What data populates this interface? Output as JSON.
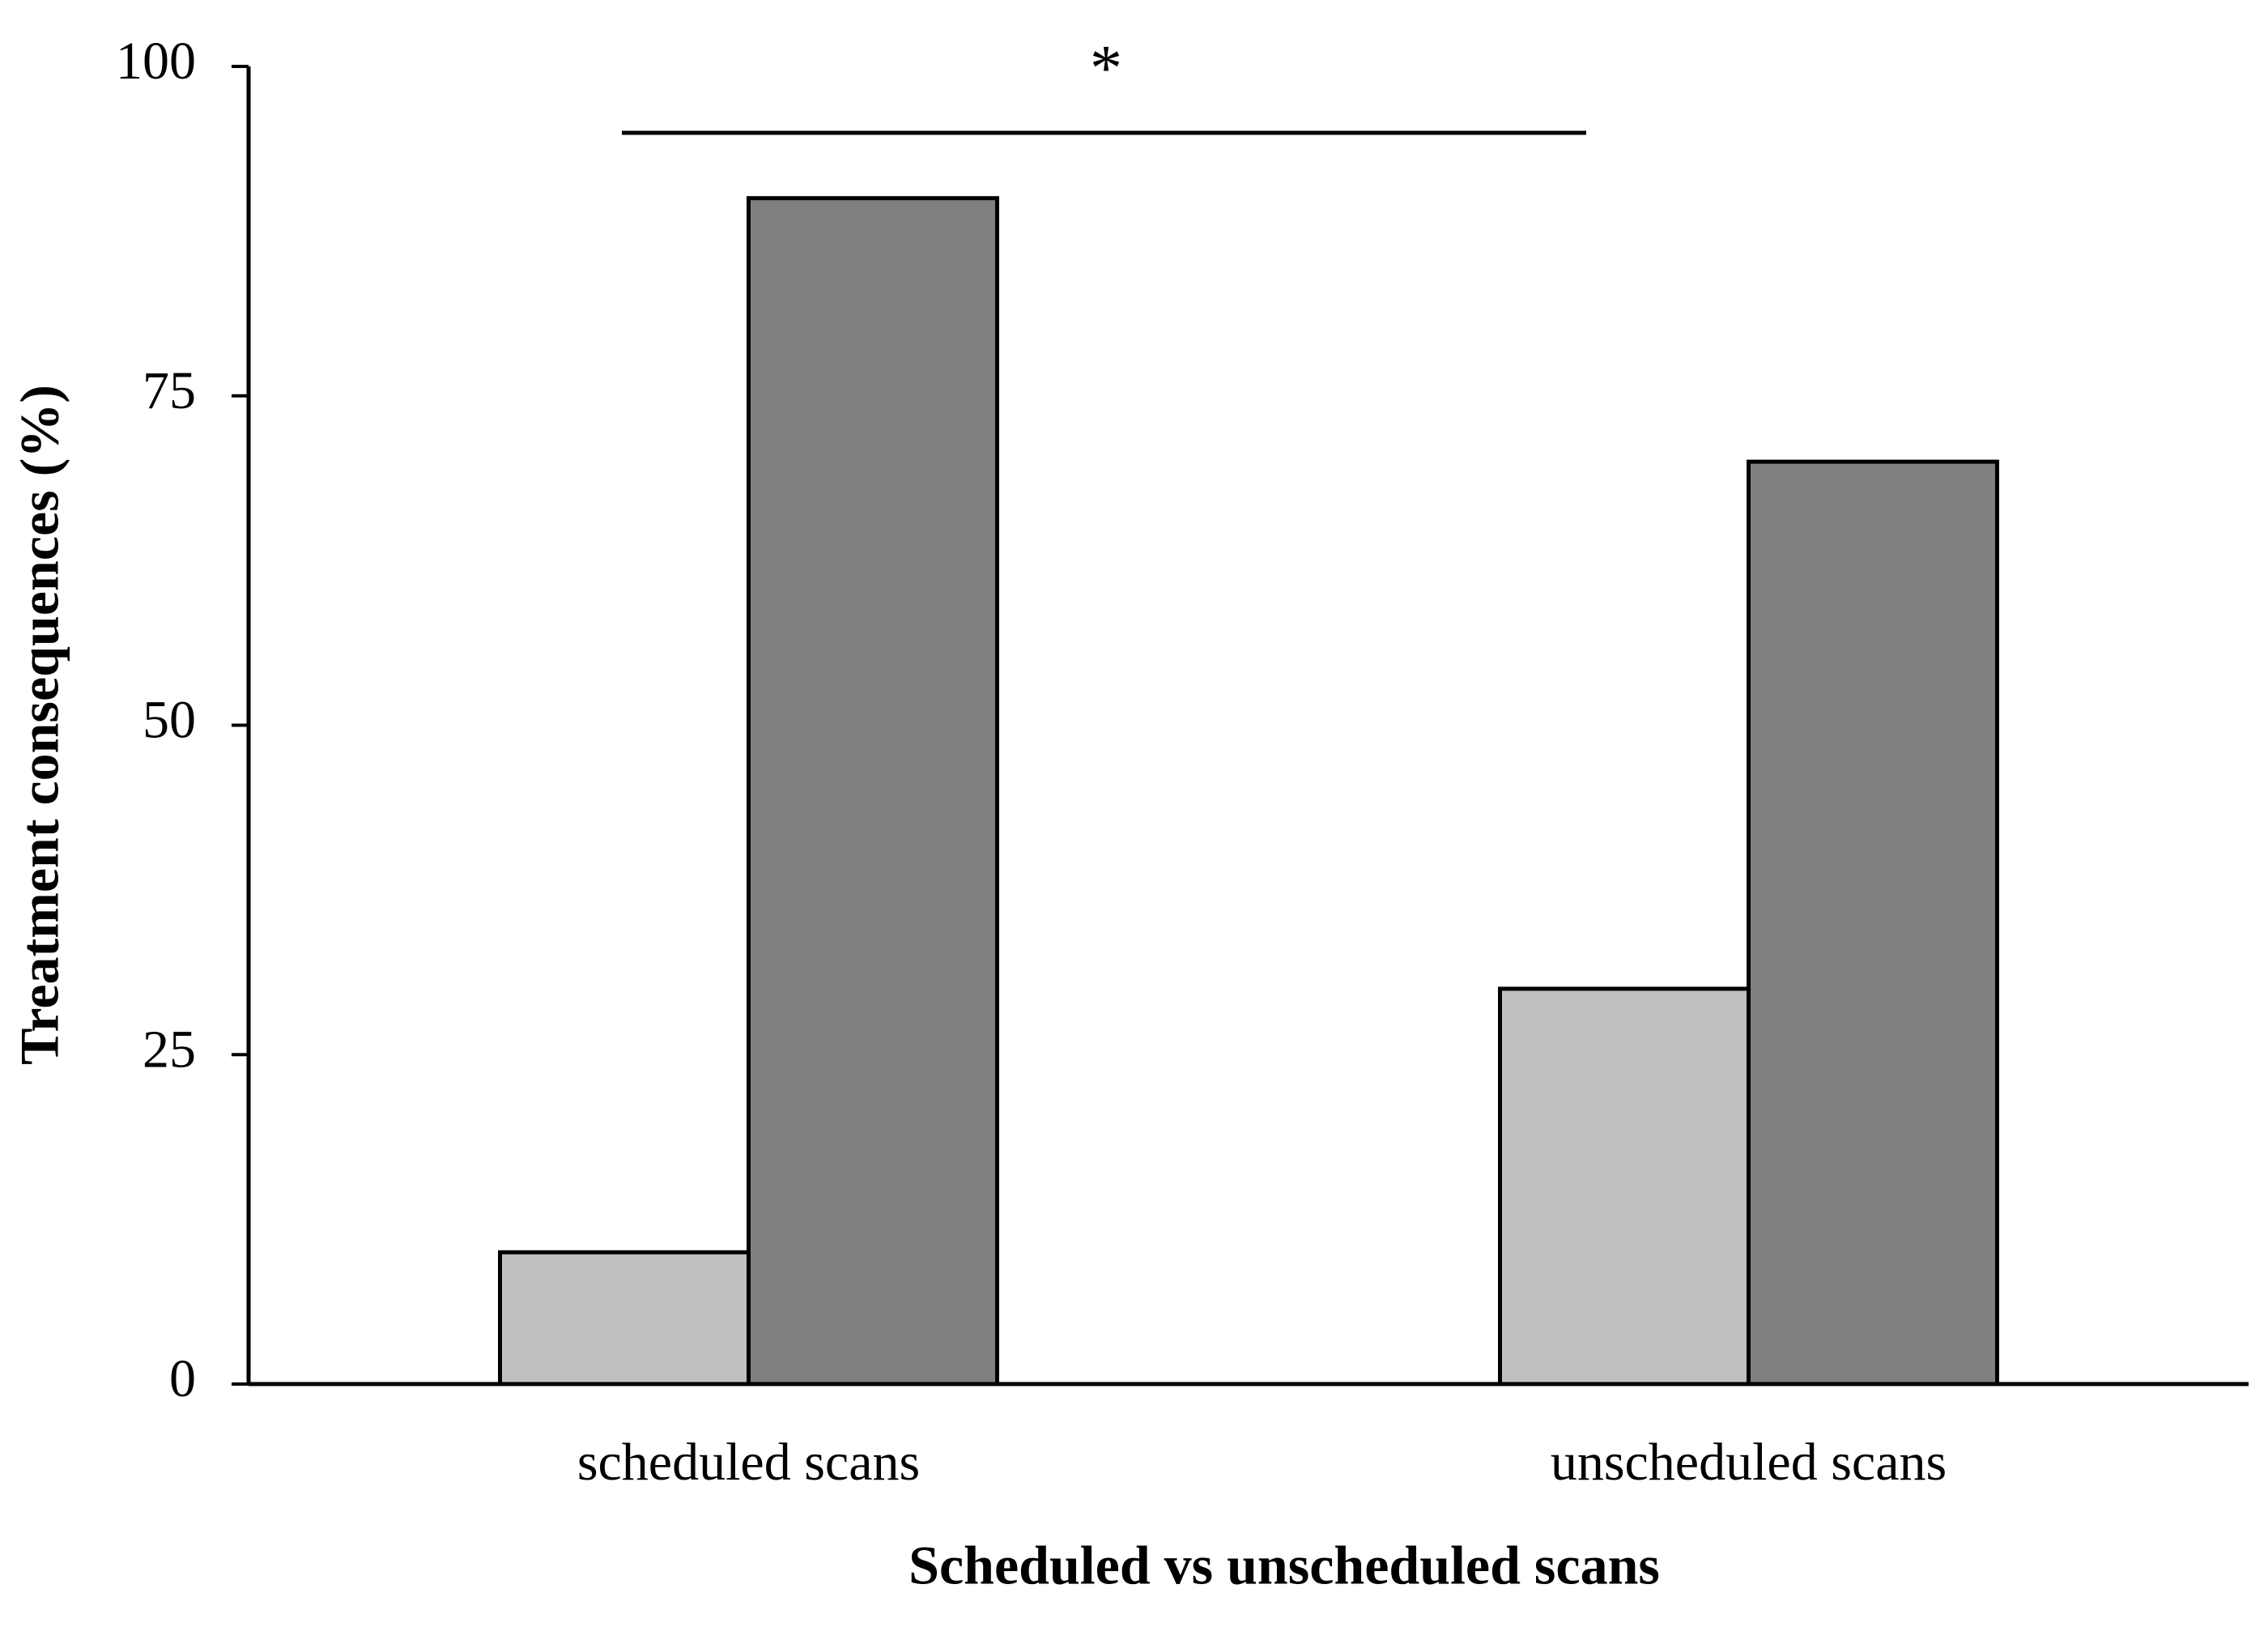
{
  "chart_data": {
    "type": "bar",
    "x_label": "Scheduled vs unscheduled scans",
    "y_label": "Treatment consequences (%)",
    "annotation": "*",
    "categories": [
      "scheduled scans",
      "unscheduled scans"
    ],
    "series": [
      {
        "color": "#c0c0c0",
        "values": [
          10,
          30
        ]
      },
      {
        "color": "#808080",
        "values": [
          90,
          70
        ]
      }
    ],
    "ylim": [
      0,
      100
    ],
    "yticks": [
      0,
      25,
      50,
      75,
      100
    ],
    "grid": false
  }
}
